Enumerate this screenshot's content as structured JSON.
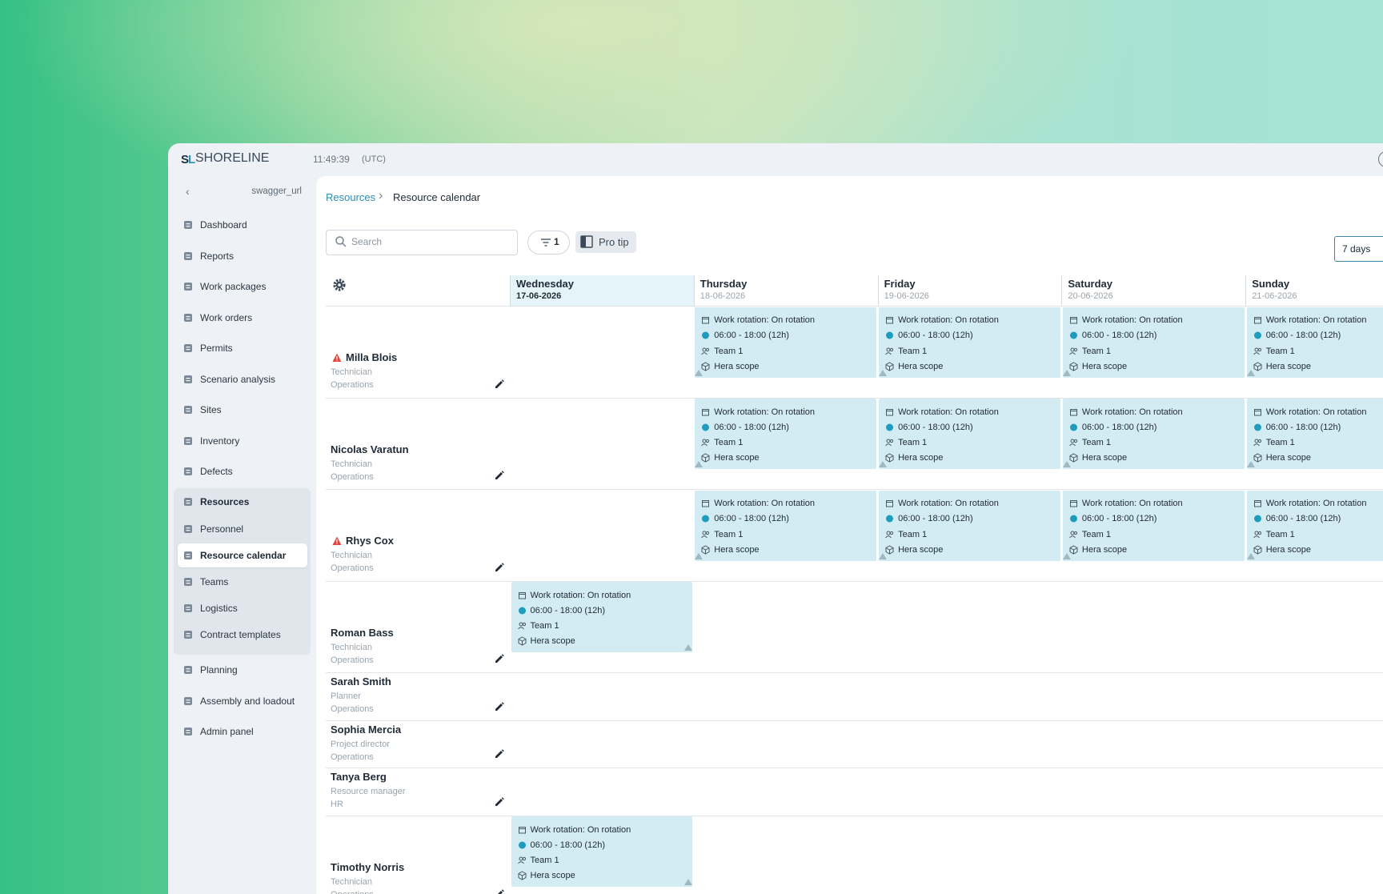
{
  "header": {
    "logo": "SHORELINE",
    "time": "11:49:39",
    "timezone": "(UTC)"
  },
  "sidebar": {
    "environment": "swagger_url",
    "nav": [
      "Dashboard",
      "Reports",
      "Work packages",
      "Work orders",
      "Permits",
      "Scenario analysis",
      "Sites",
      "Inventory",
      "Defects"
    ],
    "group": {
      "label": "Resources",
      "children": [
        {
          "label": "Personnel"
        },
        {
          "label": "Resource calendar",
          "active": true
        },
        {
          "label": "Teams"
        },
        {
          "label": "Logistics"
        },
        {
          "label": "Contract templates"
        }
      ]
    },
    "nav_bottom": [
      "Planning",
      "Assembly and loadout",
      "Admin panel"
    ]
  },
  "breadcrumb": [
    "Resources",
    "Resource calendar"
  ],
  "toolbar": {
    "search_placeholder": "Search",
    "filter_count": "1",
    "pro_tip": "Pro tip",
    "range": "7 days"
  },
  "days": [
    {
      "name": "Wednesday",
      "date": "17-06-2026",
      "today": true
    },
    {
      "name": "Thursday",
      "date": "18-06-2026"
    },
    {
      "name": "Friday",
      "date": "19-06-2026"
    },
    {
      "name": "Saturday",
      "date": "20-06-2026"
    },
    {
      "name": "Sunday",
      "date": "21-06-2026"
    }
  ],
  "people": [
    {
      "name": "Milla Blois",
      "role": "Technician",
      "department": "Operations",
      "warning": true,
      "shifts": [
        null,
        {
          "rotation": "Work rotation: On rotation",
          "time": "06:00 - 18:00 (12h)",
          "team": "Team 1",
          "scope": "Hera scope"
        },
        {
          "rotation": "Work rotation: On rotation",
          "time": "06:00 - 18:00 (12h)",
          "team": "Team 1",
          "scope": "Hera scope"
        },
        {
          "rotation": "Work rotation: On rotation",
          "time": "06:00 - 18:00 (12h)",
          "team": "Team 1",
          "scope": "Hera scope"
        },
        {
          "rotation": "Work rotation: On rotation",
          "time": "06:00 - 18:00 (12h)",
          "team": "Team 1",
          "scope": "Hera scope"
        }
      ]
    },
    {
      "name": "Nicolas Varatun",
      "role": "Technician",
      "department": "Operations",
      "warning": false,
      "shifts": [
        null,
        {
          "rotation": "Work rotation: On rotation",
          "time": "06:00 - 18:00 (12h)",
          "team": "Team 1",
          "scope": "Hera scope"
        },
        {
          "rotation": "Work rotation: On rotation",
          "time": "06:00 - 18:00 (12h)",
          "team": "Team 1",
          "scope": "Hera scope"
        },
        {
          "rotation": "Work rotation: On rotation",
          "time": "06:00 - 18:00 (12h)",
          "team": "Team 1",
          "scope": "Hera scope"
        },
        {
          "rotation": "Work rotation: On rotation",
          "time": "06:00 - 18:00 (12h)",
          "team": "Team 1",
          "scope": "Hera scope"
        }
      ]
    },
    {
      "name": "Rhys Cox",
      "role": "Technician",
      "department": "Operations",
      "warning": true,
      "shifts": [
        null,
        {
          "rotation": "Work rotation: On rotation",
          "time": "06:00 - 18:00 (12h)",
          "team": "Team 1",
          "scope": "Hera scope"
        },
        {
          "rotation": "Work rotation: On rotation",
          "time": "06:00 - 18:00 (12h)",
          "team": "Team 1",
          "scope": "Hera scope"
        },
        {
          "rotation": "Work rotation: On rotation",
          "time": "06:00 - 18:00 (12h)",
          "team": "Team 1",
          "scope": "Hera scope"
        },
        {
          "rotation": "Work rotation: On rotation",
          "time": "06:00 - 18:00 (12h)",
          "team": "Team 1",
          "scope": "Hera scope"
        }
      ]
    },
    {
      "name": "Roman Bass",
      "role": "Technician",
      "department": "Operations",
      "warning": false,
      "shifts": [
        {
          "rotation": "Work rotation: On rotation",
          "time": "06:00 - 18:00 (12h)",
          "team": "Team 1",
          "scope": "Hera scope"
        },
        null,
        null,
        null,
        null
      ]
    },
    {
      "name": "Sarah Smith",
      "role": "Planner",
      "department": "Operations",
      "warning": false,
      "shifts": [
        null,
        null,
        null,
        null,
        null
      ]
    },
    {
      "name": "Sophia Mercia",
      "role": "Project director",
      "department": "Operations",
      "warning": false,
      "shifts": [
        null,
        null,
        null,
        null,
        null
      ]
    },
    {
      "name": "Tanya Berg",
      "role": "Resource manager",
      "department": "HR",
      "warning": false,
      "shifts": [
        null,
        null,
        null,
        null,
        null
      ]
    },
    {
      "name": "Timothy Norris",
      "role": "Technician",
      "department": "Operations",
      "warning": false,
      "shifts": [
        {
          "rotation": "Work rotation: On rotation",
          "time": "06:00 - 18:00 (12h)",
          "team": "Team 1",
          "scope": "Hera scope"
        },
        null,
        null,
        null,
        null
      ]
    }
  ]
}
